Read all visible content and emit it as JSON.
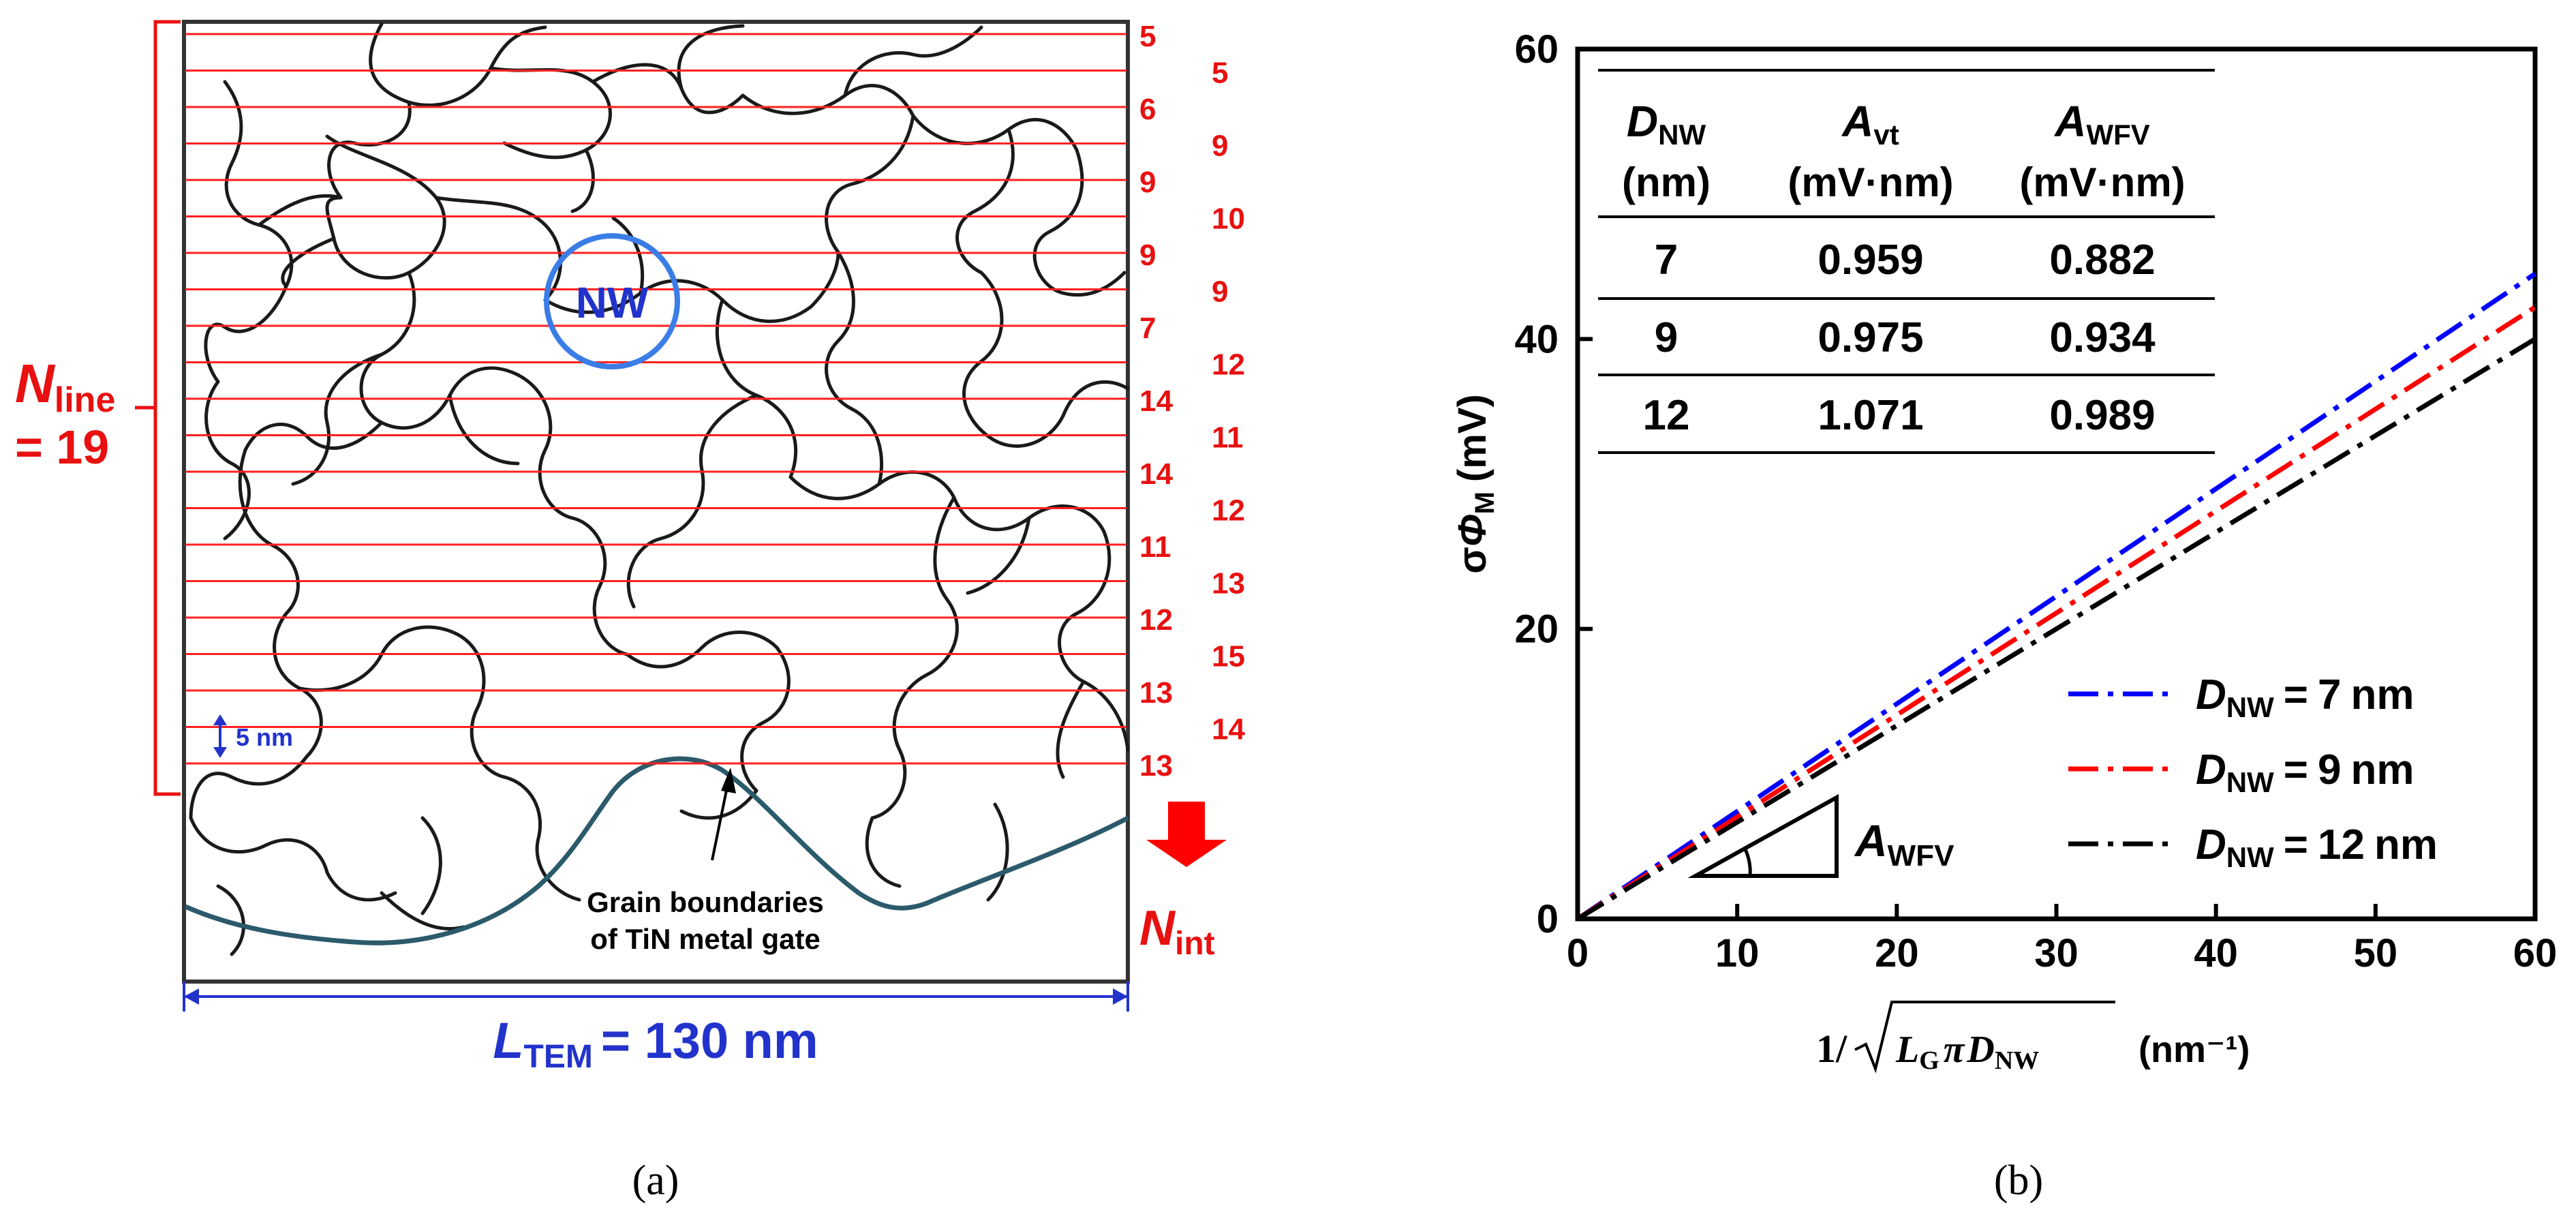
{
  "panel_a": {
    "n_line_symbol": "N",
    "n_line_sub": "line",
    "n_line_value": "= 19",
    "row_counts": [
      "5",
      "5",
      "6",
      "9",
      "9",
      "10",
      "9",
      "9",
      "7",
      "12",
      "14",
      "11",
      "14",
      "12",
      "11",
      "13",
      "12",
      "15",
      "13",
      "14",
      "13"
    ],
    "nw_label": "NW",
    "spacing_label": "5 nm",
    "grain_line1": "Grain boundaries",
    "grain_line2": "of TiN metal gate",
    "n_int_symbol": "N",
    "n_int_sub": "int",
    "l_tem_symbol": "L",
    "l_tem_sub": "TEM",
    "l_tem_value": "= 130 nm",
    "caption": "(a)"
  },
  "panel_b": {
    "caption": "(b)",
    "table": {
      "headers": [
        {
          "sym": "D",
          "sub": "NW",
          "unit": "(nm)"
        },
        {
          "sym": "A",
          "sub": "vt",
          "unit": "(mV·nm)"
        },
        {
          "sym": "A",
          "sub": "WFV",
          "unit": "(mV·nm)"
        }
      ],
      "rows": [
        [
          "7",
          "0.959",
          "0.882"
        ],
        [
          "9",
          "0.975",
          "0.934"
        ],
        [
          "12",
          "1.071",
          "0.989"
        ]
      ]
    },
    "triangle_label_sym": "A",
    "triangle_label_sub": "WFV",
    "legend_equals": "=",
    "legend_unit": "nm"
  },
  "chart_data": {
    "type": "line",
    "title": "",
    "xlabel": "1/√(L_G π D_NW) (nm⁻¹)",
    "xlabel_parts": {
      "prefix": "1/",
      "L": "L",
      "Lsub": "G",
      "pi": "π",
      "D": "D",
      "Dsub": "NW",
      "unit": "(nm⁻¹)"
    },
    "ylabel": "σΦM (mV)",
    "ylabel_parts": {
      "sigma": "σ",
      "phi": "Φ",
      "sub": "M",
      "unit": "(mV)"
    },
    "xlim": [
      0,
      60
    ],
    "ylim": [
      0,
      60
    ],
    "xticks": [
      "0",
      "10",
      "20",
      "30",
      "40",
      "50",
      "60"
    ],
    "yticks": [
      "0",
      "20",
      "40",
      "60"
    ],
    "legend_position": "bottom-right",
    "series": [
      {
        "name": "D_NW = 7 nm",
        "label_sym": "D",
        "label_sub": "NW",
        "label_value": "7",
        "color": "#0000ff",
        "x": [
          0,
          60
        ],
        "y": [
          0,
          44.5
        ]
      },
      {
        "name": "D_NW = 9 nm",
        "label_sym": "D",
        "label_sub": "NW",
        "label_value": "9",
        "color": "#ff0000",
        "x": [
          0,
          60
        ],
        "y": [
          0,
          42.2
        ]
      },
      {
        "name": "D_NW = 12 nm",
        "label_sym": "D",
        "label_sub": "NW",
        "label_value": "12",
        "color": "#000000",
        "x": [
          0,
          60
        ],
        "y": [
          0,
          40.0
        ]
      }
    ]
  }
}
